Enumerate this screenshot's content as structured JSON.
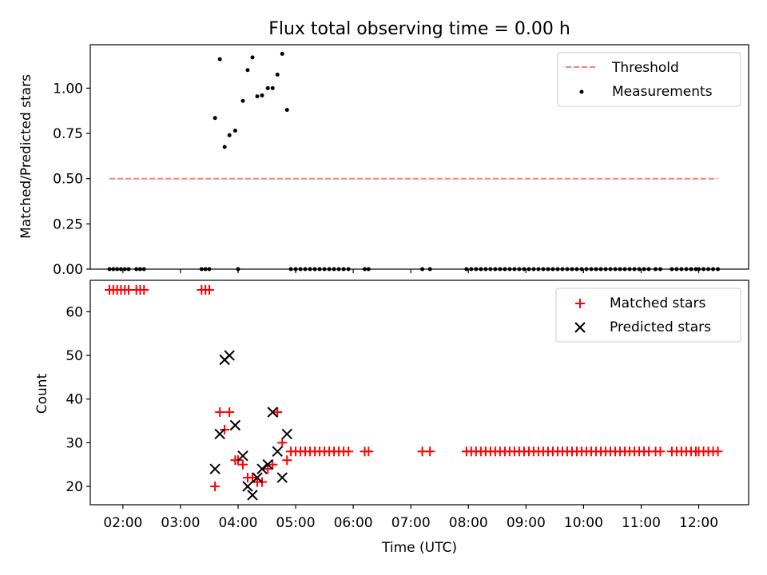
{
  "title": "Flux total observing time = 0.00 h",
  "x_tick_labels": [
    "02:00",
    "03:00",
    "04:00",
    "05:00",
    "06:00",
    "07:00",
    "08:00",
    "09:00",
    "10:00",
    "11:00",
    "12:00"
  ],
  "chart_data": [
    {
      "type": "scatter",
      "xlabel": "",
      "ylabel": "Matched/Predicted stars",
      "xlim": [
        "01:26",
        "12:52"
      ],
      "ylim": [
        0,
        1.24
      ],
      "yticks": [
        0.0,
        0.25,
        0.5,
        0.75,
        1.0
      ],
      "ytick_labels": [
        "0.00",
        "0.25",
        "0.50",
        "0.75",
        "1.00"
      ],
      "legend_position": "top-right",
      "threshold": {
        "name": "Threshold",
        "value": 0.5,
        "x_range": [
          "01:46",
          "12:20"
        ],
        "color": "#ff7f7f"
      },
      "series": [
        {
          "name": "Measurements",
          "color": "#000000",
          "marker": "dot",
          "points": [
            [
              "01:46",
              0
            ],
            [
              "01:50",
              0
            ],
            [
              "01:54",
              0
            ],
            [
              "01:58",
              0
            ],
            [
              "02:02",
              0
            ],
            [
              "02:06",
              0
            ],
            [
              "02:14",
              0
            ],
            [
              "02:18",
              0
            ],
            [
              "02:22",
              0
            ],
            [
              "03:22",
              0
            ],
            [
              "03:26",
              0
            ],
            [
              "03:30",
              0
            ],
            [
              "03:36",
              0.835
            ],
            [
              "03:41",
              1.16
            ],
            [
              "03:46",
              0.675
            ],
            [
              "03:51",
              0.74
            ],
            [
              "03:57",
              0.765
            ],
            [
              "04:00",
              0
            ],
            [
              "04:05",
              0.93
            ],
            [
              "04:10",
              1.1
            ],
            [
              "04:15",
              1.17
            ],
            [
              "04:20",
              0.955
            ],
            [
              "04:25",
              0.96
            ],
            [
              "04:31",
              1.0
            ],
            [
              "04:36",
              1.0
            ],
            [
              "04:41",
              1.075
            ],
            [
              "04:46",
              1.19
            ],
            [
              "04:51",
              0.88
            ],
            [
              "04:55",
              0
            ],
            [
              "05:00",
              0
            ],
            [
              "05:05",
              0
            ],
            [
              "05:10",
              0
            ],
            [
              "05:15",
              0
            ],
            [
              "05:20",
              0
            ],
            [
              "05:25",
              0
            ],
            [
              "05:30",
              0
            ],
            [
              "05:35",
              0
            ],
            [
              "05:40",
              0
            ],
            [
              "05:45",
              0
            ],
            [
              "05:50",
              0
            ],
            [
              "05:55",
              0
            ],
            [
              "06:12",
              0
            ],
            [
              "06:16",
              0
            ],
            [
              "07:12",
              0
            ],
            [
              "07:20",
              0
            ],
            [
              "07:58",
              0
            ],
            [
              "08:03",
              0
            ],
            [
              "08:08",
              0
            ],
            [
              "08:13",
              0
            ],
            [
              "08:18",
              0
            ],
            [
              "08:23",
              0
            ],
            [
              "08:28",
              0
            ],
            [
              "08:33",
              0
            ],
            [
              "08:38",
              0
            ],
            [
              "08:43",
              0
            ],
            [
              "08:48",
              0
            ],
            [
              "08:53",
              0
            ],
            [
              "08:58",
              0
            ],
            [
              "09:03",
              0
            ],
            [
              "09:08",
              0
            ],
            [
              "09:13",
              0
            ],
            [
              "09:18",
              0
            ],
            [
              "09:23",
              0
            ],
            [
              "09:28",
              0
            ],
            [
              "09:33",
              0
            ],
            [
              "09:38",
              0
            ],
            [
              "09:43",
              0
            ],
            [
              "09:48",
              0
            ],
            [
              "09:53",
              0
            ],
            [
              "09:58",
              0
            ],
            [
              "10:03",
              0
            ],
            [
              "10:08",
              0
            ],
            [
              "10:13",
              0
            ],
            [
              "10:18",
              0
            ],
            [
              "10:23",
              0
            ],
            [
              "10:28",
              0
            ],
            [
              "10:33",
              0
            ],
            [
              "10:38",
              0
            ],
            [
              "10:43",
              0
            ],
            [
              "10:48",
              0
            ],
            [
              "10:53",
              0
            ],
            [
              "10:58",
              0
            ],
            [
              "11:03",
              0
            ],
            [
              "11:08",
              0
            ],
            [
              "11:15",
              0
            ],
            [
              "11:20",
              0
            ],
            [
              "11:32",
              0
            ],
            [
              "11:37",
              0
            ],
            [
              "11:42",
              0
            ],
            [
              "11:47",
              0
            ],
            [
              "11:52",
              0
            ],
            [
              "11:57",
              0
            ],
            [
              "12:00",
              0
            ],
            [
              "12:05",
              0
            ],
            [
              "12:10",
              0
            ],
            [
              "12:15",
              0
            ],
            [
              "12:20",
              0
            ]
          ]
        }
      ]
    },
    {
      "type": "scatter",
      "xlabel": "Time (UTC)",
      "ylabel": "Count",
      "xlim": [
        "01:26",
        "12:52"
      ],
      "ylim": [
        15.8,
        67.2
      ],
      "yticks": [
        20,
        30,
        40,
        50,
        60
      ],
      "ytick_labels": [
        "20",
        "30",
        "40",
        "50",
        "60"
      ],
      "legend_position": "top-right",
      "series": [
        {
          "name": "Matched stars",
          "color": "#ff0000",
          "marker": "plus",
          "points": [
            [
              "01:46",
              65
            ],
            [
              "01:50",
              65
            ],
            [
              "01:54",
              65
            ],
            [
              "01:58",
              65
            ],
            [
              "02:02",
              65
            ],
            [
              "02:06",
              65
            ],
            [
              "02:14",
              65
            ],
            [
              "02:18",
              65
            ],
            [
              "02:22",
              65
            ],
            [
              "03:22",
              65
            ],
            [
              "03:26",
              65
            ],
            [
              "03:30",
              65
            ],
            [
              "03:36",
              20
            ],
            [
              "03:41",
              37
            ],
            [
              "03:46",
              33
            ],
            [
              "03:51",
              37
            ],
            [
              "03:57",
              26
            ],
            [
              "04:00",
              26
            ],
            [
              "04:05",
              25
            ],
            [
              "04:10",
              22
            ],
            [
              "04:15",
              22
            ],
            [
              "04:20",
              21
            ],
            [
              "04:25",
              21
            ],
            [
              "04:31",
              24
            ],
            [
              "04:36",
              25
            ],
            [
              "04:41",
              37
            ],
            [
              "04:46",
              30
            ],
            [
              "04:51",
              26
            ],
            [
              "04:55",
              28
            ],
            [
              "05:00",
              28
            ],
            [
              "05:05",
              28
            ],
            [
              "05:10",
              28
            ],
            [
              "05:15",
              28
            ],
            [
              "05:20",
              28
            ],
            [
              "05:25",
              28
            ],
            [
              "05:30",
              28
            ],
            [
              "05:35",
              28
            ],
            [
              "05:40",
              28
            ],
            [
              "05:45",
              28
            ],
            [
              "05:50",
              28
            ],
            [
              "05:55",
              28
            ],
            [
              "06:12",
              28
            ],
            [
              "06:16",
              28
            ],
            [
              "07:12",
              28
            ],
            [
              "07:20",
              28
            ],
            [
              "07:58",
              28
            ],
            [
              "08:03",
              28
            ],
            [
              "08:08",
              28
            ],
            [
              "08:13",
              28
            ],
            [
              "08:18",
              28
            ],
            [
              "08:23",
              28
            ],
            [
              "08:28",
              28
            ],
            [
              "08:33",
              28
            ],
            [
              "08:38",
              28
            ],
            [
              "08:43",
              28
            ],
            [
              "08:48",
              28
            ],
            [
              "08:53",
              28
            ],
            [
              "08:58",
              28
            ],
            [
              "09:03",
              28
            ],
            [
              "09:08",
              28
            ],
            [
              "09:13",
              28
            ],
            [
              "09:18",
              28
            ],
            [
              "09:23",
              28
            ],
            [
              "09:28",
              28
            ],
            [
              "09:33",
              28
            ],
            [
              "09:38",
              28
            ],
            [
              "09:43",
              28
            ],
            [
              "09:48",
              28
            ],
            [
              "09:53",
              28
            ],
            [
              "09:58",
              28
            ],
            [
              "10:03",
              28
            ],
            [
              "10:08",
              28
            ],
            [
              "10:13",
              28
            ],
            [
              "10:18",
              28
            ],
            [
              "10:23",
              28
            ],
            [
              "10:28",
              28
            ],
            [
              "10:33",
              28
            ],
            [
              "10:38",
              28
            ],
            [
              "10:43",
              28
            ],
            [
              "10:48",
              28
            ],
            [
              "10:53",
              28
            ],
            [
              "10:58",
              28
            ],
            [
              "11:03",
              28
            ],
            [
              "11:08",
              28
            ],
            [
              "11:15",
              28
            ],
            [
              "11:20",
              28
            ],
            [
              "11:32",
              28
            ],
            [
              "11:37",
              28
            ],
            [
              "11:42",
              28
            ],
            [
              "11:47",
              28
            ],
            [
              "11:52",
              28
            ],
            [
              "11:57",
              28
            ],
            [
              "12:00",
              28
            ],
            [
              "12:05",
              28
            ],
            [
              "12:10",
              28
            ],
            [
              "12:15",
              28
            ],
            [
              "12:20",
              28
            ]
          ]
        },
        {
          "name": "Predicted stars",
          "color": "#000000",
          "marker": "x",
          "points": [
            [
              "03:36",
              24
            ],
            [
              "03:41",
              32
            ],
            [
              "03:46",
              49
            ],
            [
              "03:51",
              50
            ],
            [
              "03:57",
              34
            ],
            [
              "04:05",
              27
            ],
            [
              "04:10",
              20
            ],
            [
              "04:15",
              18
            ],
            [
              "04:20",
              22
            ],
            [
              "04:25",
              24
            ],
            [
              "04:31",
              25
            ],
            [
              "04:36",
              37
            ],
            [
              "04:41",
              28
            ],
            [
              "04:46",
              22
            ],
            [
              "04:51",
              32
            ]
          ]
        }
      ]
    }
  ]
}
